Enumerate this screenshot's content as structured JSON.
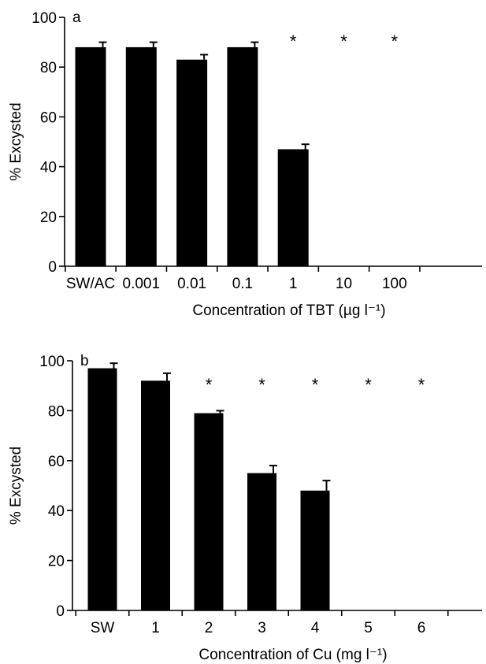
{
  "chart_data": [
    {
      "type": "bar",
      "panel_label": "a",
      "categories": [
        "SW/AC",
        "0.001",
        "0.01",
        "0.1",
        "1",
        "10",
        "100"
      ],
      "values": [
        88,
        88,
        83,
        88,
        47,
        0,
        0
      ],
      "errors": [
        2,
        2,
        2,
        2,
        2,
        0,
        0
      ],
      "significance": [
        "",
        "",
        "",
        "",
        "*",
        "*",
        "*"
      ],
      "ylabel": "% Excysted",
      "xlabel": "Concentration of TBT (µg l⁻¹)",
      "ylim": [
        0,
        100
      ],
      "yticks": [
        0,
        20,
        40,
        60,
        80,
        100
      ],
      "grid": false,
      "bar_color": "#000000"
    },
    {
      "type": "bar",
      "panel_label": "b",
      "categories": [
        "SW",
        "1",
        "2",
        "3",
        "4",
        "5",
        "6"
      ],
      "values": [
        97,
        92,
        79,
        55,
        48,
        0,
        0
      ],
      "errors": [
        2,
        3,
        1,
        3,
        4,
        0,
        0
      ],
      "significance": [
        "",
        "",
        "*",
        "*",
        "*",
        "*",
        "*"
      ],
      "ylabel": "% Excysted",
      "xlabel": "Concentration of Cu (mg l⁻¹)",
      "ylim": [
        0,
        100
      ],
      "yticks": [
        0,
        20,
        40,
        60,
        80,
        100
      ],
      "grid": false,
      "bar_color": "#000000"
    }
  ]
}
